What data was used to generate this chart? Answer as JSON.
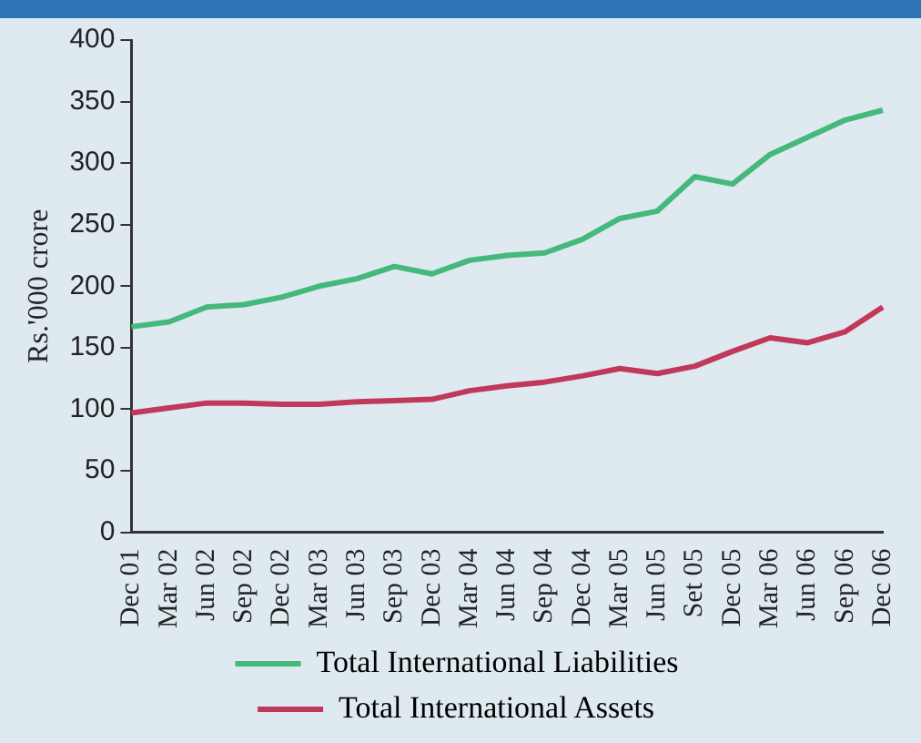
{
  "chart_data": {
    "type": "line",
    "ylabel": "Rs.'000 crore",
    "categories": [
      "Dec 01",
      "Mar 02",
      "Jun 02",
      "Sep 02",
      "Dec 02",
      "Mar 03",
      "Jun 03",
      "Sep 03",
      "Dec 03",
      "Mar 04",
      "Jun 04",
      "Sep 04",
      "Dec 04",
      "Mar 05",
      "Jun 05",
      "Set 05",
      "Dec 05",
      "Mar 06",
      "Jun 06",
      "Sep 06",
      "Dec 06"
    ],
    "series": [
      {
        "name": "Total International Liabilities",
        "color": "#45b97c",
        "values": [
          167,
          171,
          183,
          185,
          191,
          200,
          206,
          216,
          210,
          221,
          225,
          227,
          238,
          255,
          261,
          289,
          283,
          307,
          321,
          335,
          343
        ]
      },
      {
        "name": "Total International Assets",
        "color": "#c0395a",
        "values": [
          97,
          101,
          105,
          105,
          104,
          104,
          106,
          107,
          108,
          115,
          119,
          122,
          127,
          133,
          129,
          135,
          147,
          158,
          154,
          163,
          183
        ]
      }
    ],
    "ylim": [
      0,
      400
    ],
    "yticks": [
      0,
      50,
      100,
      150,
      200,
      250,
      300,
      350,
      400
    ],
    "grid": false,
    "legend": "bottom",
    "marker": "none",
    "line_style": "solid"
  }
}
